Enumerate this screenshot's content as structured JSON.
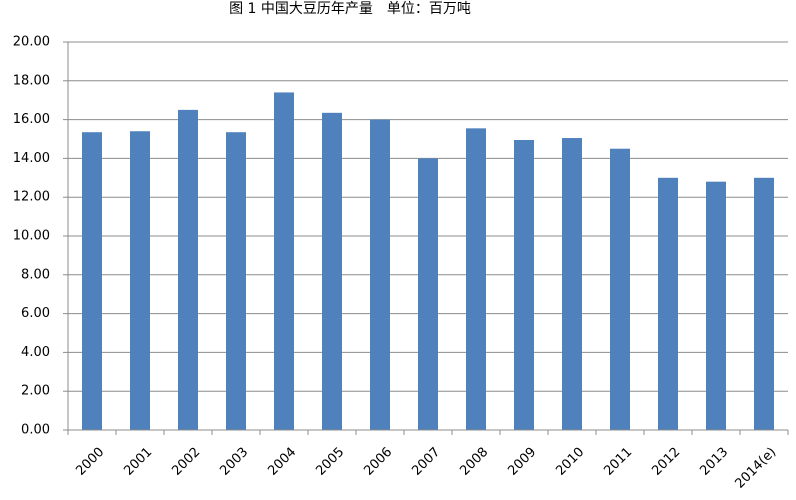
{
  "chart_data": {
    "type": "bar",
    "title": "图 1 中国大豆历年产量　单位：百万吨",
    "categories": [
      "2000",
      "2001",
      "2002",
      "2003",
      "2004",
      "2005",
      "2006",
      "2007",
      "2008",
      "2009",
      "2010",
      "2011",
      "2012",
      "2013",
      "2014(e)"
    ],
    "values": [
      15.35,
      15.4,
      16.5,
      15.35,
      17.4,
      16.35,
      16.0,
      14.0,
      15.55,
      14.95,
      15.05,
      14.5,
      13.0,
      12.8,
      13.0
    ],
    "color": "#4f81bd",
    "ylim": [
      0,
      20
    ],
    "yticks": [
      {
        "value": 0,
        "label": "0.00"
      },
      {
        "value": 2,
        "label": "2.00"
      },
      {
        "value": 4,
        "label": "4.00"
      },
      {
        "value": 6,
        "label": "6.00"
      },
      {
        "value": 8,
        "label": "8.00"
      },
      {
        "value": 10,
        "label": "10.00"
      },
      {
        "value": 12,
        "label": "12.00"
      },
      {
        "value": 14,
        "label": "14.00"
      },
      {
        "value": 16,
        "label": "16.00"
      },
      {
        "value": 18,
        "label": "18.00"
      },
      {
        "value": 20,
        "label": "20.00"
      }
    ],
    "grid": true
  }
}
